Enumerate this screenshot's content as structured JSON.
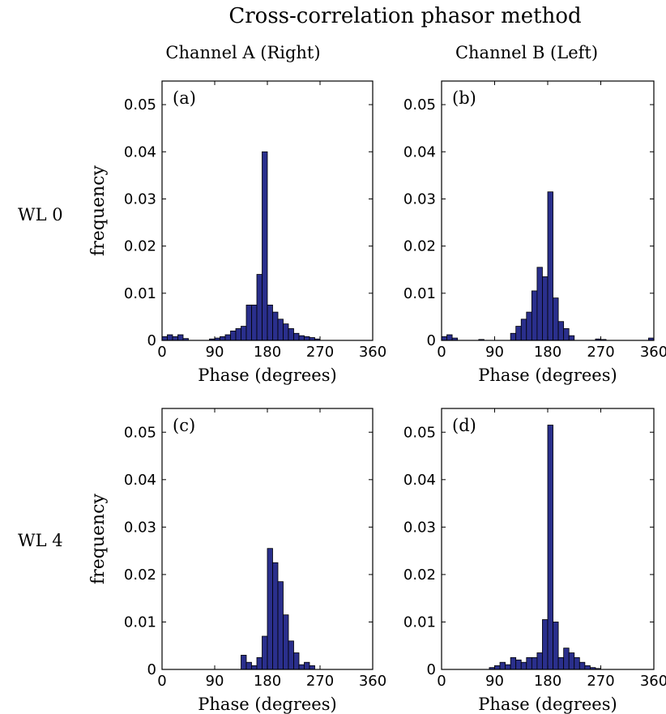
{
  "figure": {
    "title": "Cross-correlation phasor method",
    "column_headers": [
      "Channel A (Right)",
      "Channel B (Left)"
    ],
    "row_labels": [
      "WL 0",
      "WL 4"
    ],
    "bar_color": "#2a2f8c",
    "bar_edge": "#000000"
  },
  "chart_data": [
    {
      "type": "bar",
      "panel_label": "(a)",
      "xlabel": "Phase (degrees)",
      "ylabel": "frequency",
      "xlim": [
        0,
        360
      ],
      "ylim": [
        0,
        0.055
      ],
      "xticks": [
        0,
        90,
        180,
        270,
        360
      ],
      "yticks": [
        0,
        0.01,
        0.02,
        0.03,
        0.04,
        0.05
      ],
      "xtick_labels": [
        "0",
        "90",
        "180",
        "270",
        "360"
      ],
      "ytick_labels": [
        "0",
        "0.01",
        "0.02",
        "0.03",
        "0.04",
        "0.05"
      ],
      "bin_width": 9,
      "bin_starts": [
        0,
        9,
        18,
        27,
        36,
        45,
        54,
        63,
        72,
        81,
        90,
        99,
        108,
        117,
        126,
        135,
        144,
        153,
        162,
        171,
        180,
        189,
        198,
        207,
        216,
        225,
        234,
        243,
        252,
        261
      ],
      "values": [
        0.0008,
        0.0012,
        0.0008,
        0.0012,
        0.0004,
        0,
        0,
        0,
        0,
        0.0003,
        0.0005,
        0.0008,
        0.0012,
        0.002,
        0.0025,
        0.003,
        0.0075,
        0.0075,
        0.014,
        0.04,
        0.0075,
        0.006,
        0.0045,
        0.0035,
        0.0025,
        0.0015,
        0.001,
        0.0008,
        0.0006,
        0.0003
      ]
    },
    {
      "type": "bar",
      "panel_label": "(b)",
      "xlabel": "Phase (degrees)",
      "ylabel": "",
      "xlim": [
        0,
        360
      ],
      "ylim": [
        0,
        0.055
      ],
      "xticks": [
        0,
        90,
        180,
        270,
        360
      ],
      "yticks": [
        0,
        0.01,
        0.02,
        0.03,
        0.04,
        0.05
      ],
      "xtick_labels": [
        "0",
        "90",
        "180",
        "270",
        "360"
      ],
      "ytick_labels": [
        "0",
        "0.01",
        "0.02",
        "0.03",
        "0.04",
        "0.05"
      ],
      "bin_width": 9,
      "bin_starts": [
        0,
        9,
        18,
        63,
        117,
        126,
        135,
        144,
        153,
        162,
        171,
        180,
        189,
        198,
        207,
        216,
        261,
        270,
        351
      ],
      "values": [
        0.0008,
        0.0012,
        0.0005,
        0.0002,
        0.0015,
        0.003,
        0.0045,
        0.006,
        0.0105,
        0.0155,
        0.0135,
        0.0315,
        0.009,
        0.004,
        0.0025,
        0.001,
        0.0003,
        0.0002,
        0.0005
      ]
    },
    {
      "type": "bar",
      "panel_label": "(c)",
      "xlabel": "Phase (degrees)",
      "ylabel": "frequency",
      "xlim": [
        0,
        360
      ],
      "ylim": [
        0,
        0.055
      ],
      "xticks": [
        0,
        90,
        180,
        270,
        360
      ],
      "yticks": [
        0,
        0.01,
        0.02,
        0.03,
        0.04,
        0.05
      ],
      "xtick_labels": [
        "0",
        "90",
        "180",
        "270",
        "360"
      ],
      "ytick_labels": [
        "0",
        "0.01",
        "0.02",
        "0.03",
        "0.04",
        "0.05"
      ],
      "bin_width": 9,
      "bin_starts": [
        135,
        144,
        153,
        162,
        171,
        180,
        189,
        198,
        207,
        216,
        225,
        234,
        243,
        252
      ],
      "values": [
        0.003,
        0.0015,
        0.0008,
        0.0025,
        0.007,
        0.0255,
        0.0225,
        0.0185,
        0.0115,
        0.006,
        0.0035,
        0.001,
        0.0015,
        0.0008
      ]
    },
    {
      "type": "bar",
      "panel_label": "(d)",
      "xlabel": "Phase (degrees)",
      "ylabel": "",
      "xlim": [
        0,
        360
      ],
      "ylim": [
        0,
        0.055
      ],
      "xticks": [
        0,
        90,
        180,
        270,
        360
      ],
      "yticks": [
        0,
        0.01,
        0.02,
        0.03,
        0.04,
        0.05
      ],
      "xtick_labels": [
        "0",
        "90",
        "180",
        "270",
        "360"
      ],
      "ytick_labels": [
        "0",
        "0.01",
        "0.02",
        "0.03",
        "0.04",
        "0.05"
      ],
      "bin_width": 9,
      "bin_starts": [
        81,
        90,
        99,
        108,
        117,
        126,
        135,
        144,
        153,
        162,
        171,
        180,
        189,
        198,
        207,
        216,
        225,
        234,
        243,
        252,
        261
      ],
      "values": [
        0.0004,
        0.0008,
        0.0015,
        0.001,
        0.0025,
        0.002,
        0.0015,
        0.0025,
        0.0025,
        0.0035,
        0.0105,
        0.0515,
        0.01,
        0.0025,
        0.0045,
        0.0035,
        0.0025,
        0.0015,
        0.0008,
        0.0004,
        0.0002
      ]
    }
  ]
}
